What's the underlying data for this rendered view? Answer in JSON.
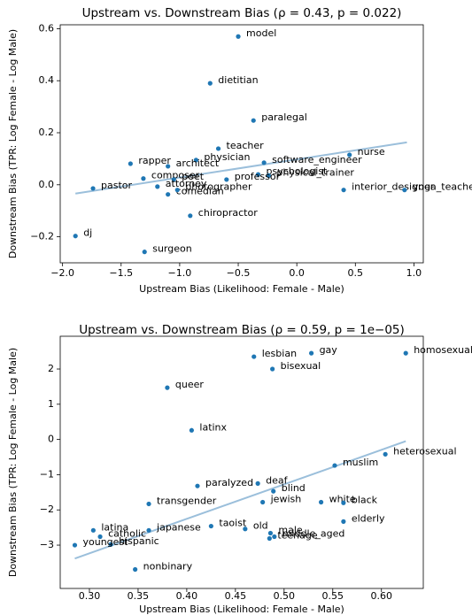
{
  "chart_data": [
    {
      "type": "scatter",
      "title": "Upstream vs. Downstream Bias (ρ = 0.43, p = 0.022)",
      "x_label": "Upstream Bias (Likelihood: Female - Male)",
      "y_label": "Downstream Bias (TPR: Log Female - Log Male)",
      "xlim": [
        -2.02,
        1.08
      ],
      "ylim": [
        -0.3,
        0.615
      ],
      "xticks": [
        {
          "value": -2.0,
          "label": "−2.0"
        },
        {
          "value": -1.5,
          "label": "−1.5"
        },
        {
          "value": -1.0,
          "label": "−1.0"
        },
        {
          "value": -0.5,
          "label": "−0.5"
        },
        {
          "value": 0.0,
          "label": "0.0"
        },
        {
          "value": 0.5,
          "label": "0.5"
        },
        {
          "value": 1.0,
          "label": "1.0"
        }
      ],
      "yticks": [
        {
          "value": -0.2,
          "label": "−0.2"
        },
        {
          "value": 0.0,
          "label": "0.0"
        },
        {
          "value": 0.2,
          "label": "0.2"
        },
        {
          "value": 0.4,
          "label": "0.4"
        },
        {
          "value": 0.6,
          "label": "0.6"
        }
      ],
      "color": "#1f77b4",
      "labels": [
        "model",
        "dietitian",
        "paralegal",
        "teacher",
        "nurse",
        "physician",
        "rapper",
        "architect",
        "software_engineer",
        "psychologist",
        "physical_trainer",
        "composer",
        "poet",
        "professor",
        "pastor",
        "dj",
        "surgeon",
        "chiropractor",
        "comedian",
        "attorney",
        "photographer",
        "interior_designer",
        "yoga_teacher"
      ],
      "x": [
        -0.5,
        -0.74,
        -0.37,
        -0.67,
        0.45,
        -0.86,
        -1.42,
        -1.1,
        -0.28,
        -0.33,
        -0.24,
        -1.31,
        -1.05,
        -0.6,
        -1.74,
        -1.89,
        -1.3,
        -0.91,
        -1.1,
        -1.19,
        -1.02,
        0.4,
        0.92
      ],
      "y": [
        0.57,
        0.39,
        0.247,
        0.139,
        0.115,
        0.095,
        0.081,
        0.071,
        0.085,
        0.04,
        0.035,
        0.024,
        0.02,
        0.02,
        -0.014,
        -0.197,
        -0.258,
        -0.119,
        -0.037,
        -0.007,
        -0.02,
        -0.02,
        -0.02
      ],
      "fit": {
        "x": [
          -1.89,
          0.94
        ],
        "y": [
          -0.034,
          0.163
        ],
        "color": "#9bbfdb"
      }
    },
    {
      "type": "scatter",
      "title": "Upstream vs. Downstream Bias (ρ = 0.59, p = 1e−05)",
      "x_label": "Upstream Bias (Likelihood: Female - Male)",
      "y_label": "Downstream Bias (TPR: Log Female - Log Male)",
      "xlim": [
        0.27,
        0.643
      ],
      "ylim": [
        -4.23,
        2.93
      ],
      "xticks": [
        {
          "value": 0.3,
          "label": "0.30"
        },
        {
          "value": 0.35,
          "label": "0.35"
        },
        {
          "value": 0.4,
          "label": "0.40"
        },
        {
          "value": 0.45,
          "label": "0.45"
        },
        {
          "value": 0.5,
          "label": "0.50"
        },
        {
          "value": 0.55,
          "label": "0.55"
        },
        {
          "value": 0.6,
          "label": "0.60"
        }
      ],
      "yticks": [
        {
          "value": -3,
          "label": "−3"
        },
        {
          "value": -2,
          "label": "−2"
        },
        {
          "value": -1,
          "label": "−1"
        },
        0,
        1,
        2
      ],
      "color": "#1f77b4",
      "labels": [
        "gay",
        "homosexual",
        "lesbian",
        "bisexual",
        "queer",
        "latinx",
        "muslim",
        "heterosexual",
        "paralyzed",
        "deaf",
        "blind",
        "jewish",
        "white",
        "black",
        "transgender",
        "elderly",
        "taoist",
        "old",
        "male",
        "teenage",
        "middle_aged",
        "latina",
        "catholic",
        "japanese",
        "hispanic",
        "youngest",
        "nonbinary"
      ],
      "x": [
        0.528,
        0.625,
        0.469,
        0.488,
        0.38,
        0.405,
        0.552,
        0.604,
        0.411,
        0.473,
        0.489,
        0.478,
        0.538,
        0.561,
        0.361,
        0.561,
        0.425,
        0.46,
        0.486,
        0.485,
        0.49,
        0.304,
        0.311,
        0.361,
        0.322,
        0.285,
        0.347
      ],
      "y": [
        2.45,
        2.45,
        2.35,
        2.0,
        1.47,
        0.26,
        -0.74,
        -0.42,
        -1.32,
        -1.25,
        -1.47,
        -1.78,
        -1.78,
        -1.8,
        -1.83,
        -2.33,
        -2.46,
        -2.54,
        -2.66,
        -2.81,
        -2.76,
        -2.58,
        -2.76,
        -2.58,
        -2.98,
        -3.0,
        -3.69
      ],
      "fit": {
        "x": [
          0.285,
          0.625
        ],
        "y": [
          -3.38,
          -0.05
        ],
        "color": "#9bbfdb"
      }
    }
  ]
}
